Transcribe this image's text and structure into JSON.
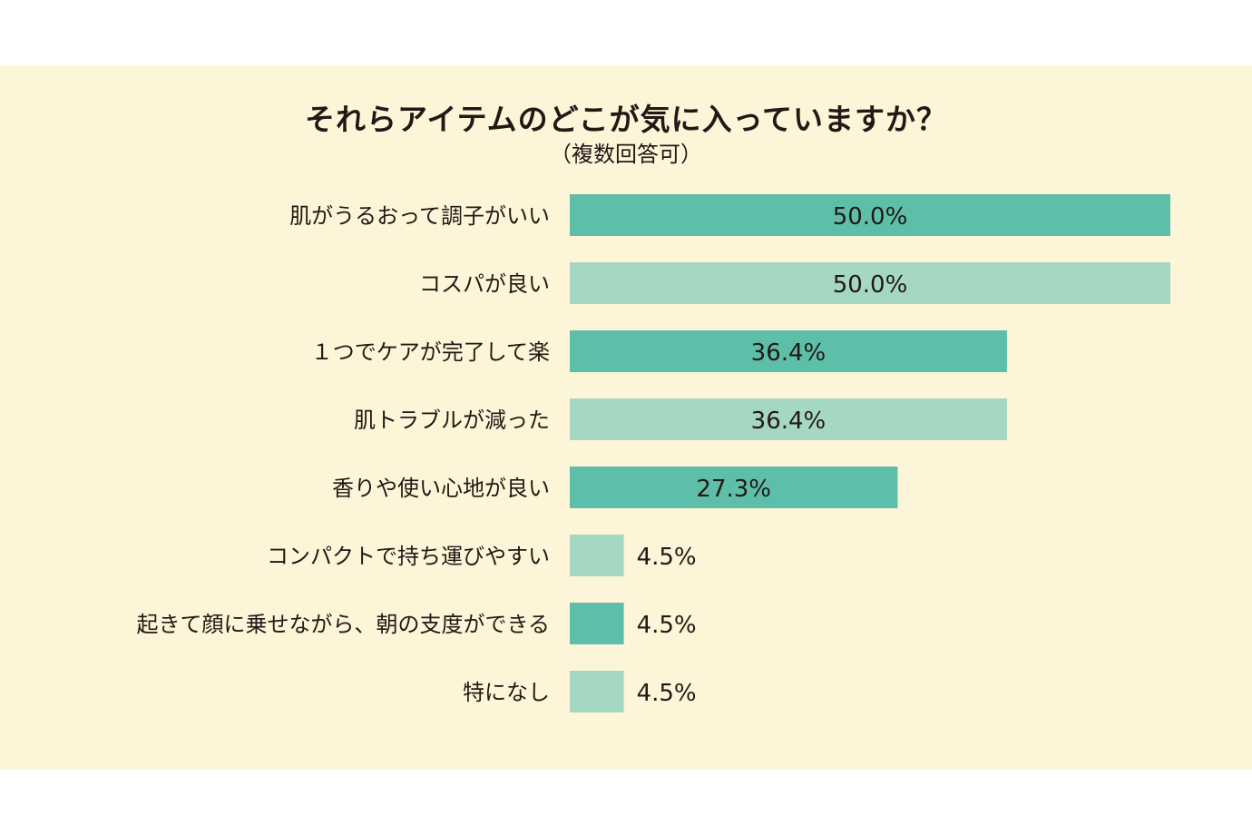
{
  "chart_data": {
    "type": "bar",
    "orientation": "horizontal",
    "title": "それらアイテムのどこが気に入っていますか？",
    "subtitle": "（複数回答可）",
    "categories": [
      "肌がうるおって調子がいい",
      "コスパが良い",
      "１つでケアが完了して楽",
      "肌トラブルが減った",
      "香りや使い心地が良い",
      "コンパクトで持ち運びやすい",
      "起きて顔に乗せながら、朝の支度ができる",
      "特になし"
    ],
    "values": [
      50.0,
      50.0,
      36.4,
      36.4,
      27.3,
      4.5,
      4.5,
      4.5
    ],
    "value_labels": [
      "50.0%",
      "50.0%",
      "36.4%",
      "36.4%",
      "27.3%",
      "4.5%",
      "4.5%",
      "4.5%"
    ],
    "xlim": [
      0,
      50
    ],
    "grid": false,
    "legend": "none",
    "colors": [
      "#5dbfaa",
      "#a5d8c2"
    ],
    "panel_background": "#fdf5d8"
  }
}
